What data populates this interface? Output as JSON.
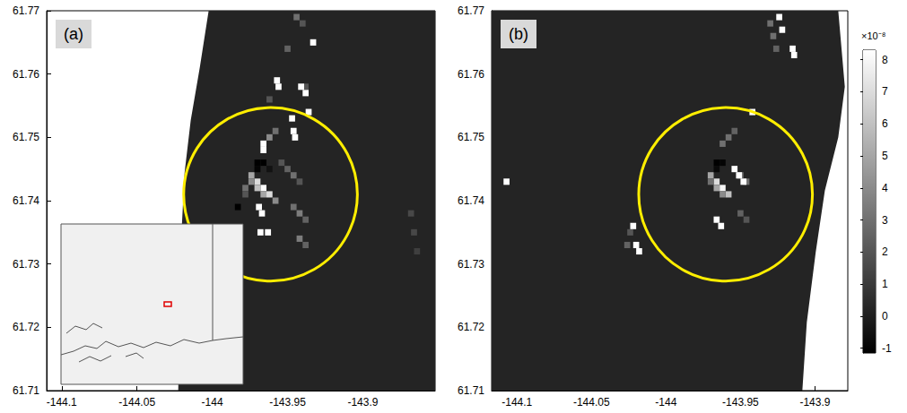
{
  "chart_data": [
    {
      "type": "heatmap",
      "panel": "(a)",
      "xlim": [
        -144.11,
        -143.852
      ],
      "xticks": [
        -144.1,
        -144.05,
        -144,
        -143.95,
        -143.9
      ],
      "ylim": [
        61.71,
        61.77
      ],
      "yticks": [
        61.71,
        61.72,
        61.73,
        61.74,
        61.75,
        61.76,
        61.77
      ],
      "grid": false,
      "background": 2e-09,
      "coverage": [
        [
          -144.0024,
          61.77
        ],
        [
          -144.0083,
          61.761
        ],
        [
          -144.0143,
          61.7527
        ],
        [
          -144.0184,
          61.7444
        ],
        [
          -144.0202,
          61.736
        ],
        [
          -144.0214,
          61.7263
        ],
        [
          -144.0226,
          61.71
        ],
        [
          -143.852,
          61.71
        ],
        [
          -143.852,
          61.77
        ]
      ],
      "cell_size": [
        0.004,
        0.001
      ],
      "cells": [
        [
          -143.974,
          61.744,
          5e-08
        ],
        [
          -143.97,
          61.743,
          7e-08
        ],
        [
          -143.966,
          61.742,
          8.5e-08
        ],
        [
          -143.962,
          61.741,
          7e-08
        ],
        [
          -143.97,
          61.742,
          6e-08
        ],
        [
          -143.966,
          61.741,
          5e-08
        ],
        [
          -143.974,
          61.743,
          4e-08
        ],
        [
          -143.958,
          61.74,
          4e-08
        ],
        [
          -143.978,
          61.742,
          3e-08
        ],
        [
          -143.978,
          61.741,
          2e-08
        ],
        [
          -143.97,
          61.746,
          -1.5e-08
        ],
        [
          -143.966,
          61.746,
          -1.2e-08
        ],
        [
          -143.97,
          61.745,
          -1e-08
        ],
        [
          -143.962,
          61.745,
          -5e-09
        ],
        [
          -143.962,
          61.75,
          4e-08
        ],
        [
          -143.958,
          61.751,
          3e-08
        ],
        [
          -143.954,
          61.746,
          2e-08
        ],
        [
          -143.95,
          61.745,
          2.5e-08
        ],
        [
          -143.946,
          61.744,
          3e-08
        ],
        [
          -143.942,
          61.743,
          2e-08
        ],
        [
          -143.946,
          61.739,
          3e-08
        ],
        [
          -143.942,
          61.738,
          3.5e-08
        ],
        [
          -143.938,
          61.737,
          2.5e-08
        ],
        [
          -143.942,
          61.734,
          3.5e-08
        ],
        [
          -143.938,
          61.733,
          2.5e-08
        ],
        [
          -143.983,
          61.739,
          -1.2e-08
        ],
        [
          -143.944,
          61.769,
          3e-08
        ],
        [
          -143.94,
          61.768,
          2e-08
        ],
        [
          -143.95,
          61.764,
          2.5e-08
        ],
        [
          -143.938,
          61.758,
          2e-08
        ],
        [
          -143.962,
          61.756,
          2e-08
        ],
        [
          -143.866,
          61.735,
          1.5e-08
        ],
        [
          -143.868,
          61.738,
          1.5e-08
        ],
        [
          -143.864,
          61.732,
          1.2e-08
        ],
        [
          -143.933,
          61.765,
          9e-08
        ],
        [
          -143.957,
          61.759,
          9e-08
        ],
        [
          -143.956,
          61.758,
          9e-08
        ],
        [
          -143.941,
          61.758,
          9e-08
        ],
        [
          -143.938,
          61.757,
          9e-08
        ],
        [
          -143.936,
          61.754,
          9e-08
        ],
        [
          -143.946,
          61.751,
          9e-08
        ],
        [
          -143.945,
          61.75,
          9e-08
        ],
        [
          -143.966,
          61.748,
          9e-08
        ],
        [
          -143.966,
          61.749,
          9e-08
        ],
        [
          -143.969,
          61.739,
          9e-08
        ],
        [
          -143.967,
          61.738,
          9e-08
        ],
        [
          -143.968,
          61.735,
          9e-08
        ],
        [
          -143.963,
          61.735,
          9e-08
        ],
        [
          -143.947,
          61.753,
          9e-08
        ]
      ],
      "circle": {
        "center": [
          -143.9613,
          61.741
        ],
        "radius": 0.0137,
        "color": "#ffee00"
      }
    },
    {
      "type": "heatmap",
      "panel": "(b)",
      "xlim": [
        -144.117,
        -143.878
      ],
      "xticks": [
        -144.1,
        -144.05,
        -144,
        -143.95,
        -143.9
      ],
      "ylim": [
        61.71,
        61.77
      ],
      "yticks": [
        61.71,
        61.72,
        61.73,
        61.74,
        61.75,
        61.76,
        61.77
      ],
      "grid": false,
      "background": 2e-09,
      "coverage": [
        [
          -143.8844,
          61.77
        ],
        [
          -143.88,
          61.758
        ],
        [
          -143.8844,
          61.75
        ],
        [
          -143.8934,
          61.7416
        ],
        [
          -143.8995,
          61.7319
        ],
        [
          -143.9055,
          61.7208
        ],
        [
          -143.9085,
          61.71
        ],
        [
          -144.117,
          61.71
        ],
        [
          -144.117,
          61.77
        ]
      ],
      "cell_size": [
        0.004,
        0.001
      ],
      "cells": [
        [
          -143.97,
          61.744,
          5e-08
        ],
        [
          -143.966,
          61.743,
          7e-08
        ],
        [
          -143.962,
          61.742,
          8e-08
        ],
        [
          -143.958,
          61.741,
          6e-08
        ],
        [
          -143.966,
          61.742,
          5e-08
        ],
        [
          -143.97,
          61.743,
          3e-08
        ],
        [
          -143.962,
          61.741,
          4e-08
        ],
        [
          -143.966,
          61.746,
          -1.5e-08
        ],
        [
          -143.962,
          61.746,
          -1e-08
        ],
        [
          -143.966,
          61.745,
          -8e-09
        ],
        [
          -143.962,
          61.749,
          3e-08
        ],
        [
          -143.958,
          61.75,
          3e-08
        ],
        [
          -143.954,
          61.751,
          2.5e-08
        ],
        [
          -143.95,
          61.744,
          3e-08
        ],
        [
          -143.946,
          61.743,
          3e-08
        ],
        [
          -143.95,
          61.738,
          2.5e-08
        ],
        [
          -143.946,
          61.737,
          2e-08
        ],
        [
          -143.93,
          61.768,
          3e-08
        ],
        [
          -143.928,
          61.766,
          3e-08
        ],
        [
          -143.926,
          61.764,
          2.5e-08
        ],
        [
          -144.024,
          61.735,
          2e-08
        ],
        [
          -144.026,
          61.733,
          2.5e-08
        ],
        [
          -144.022,
          61.736,
          9e-08
        ],
        [
          -144.02,
          61.733,
          9e-08
        ],
        [
          -144.018,
          61.732,
          9e-08
        ],
        [
          -144.107,
          61.743,
          9e-08
        ],
        [
          -143.954,
          61.745,
          9e-08
        ],
        [
          -143.951,
          61.744,
          9e-08
        ],
        [
          -143.948,
          61.743,
          9e-08
        ],
        [
          -143.966,
          61.737,
          9e-08
        ],
        [
          -143.963,
          61.736,
          9e-08
        ],
        [
          -143.924,
          61.769,
          9e-08
        ],
        [
          -143.922,
          61.767,
          9e-08
        ],
        [
          -143.915,
          61.764,
          9e-08
        ],
        [
          -143.914,
          61.763,
          9e-08
        ],
        [
          -143.942,
          61.754,
          9e-08
        ]
      ],
      "circle": {
        "center": [
          -143.96,
          61.741
        ],
        "radius": 0.0137,
        "color": "#ffee00"
      },
      "colorbar": {
        "lim": [
          -1.15e-08,
          8.3e-08
        ],
        "ticks": [
          {
            "value": -1e-08,
            "label": "-1"
          },
          0,
          {
            "value": 1e-08,
            "label": "1"
          },
          {
            "value": 2e-08,
            "label": "2"
          },
          {
            "value": 3e-08,
            "label": "3"
          },
          {
            "value": 4e-08,
            "label": "4"
          },
          {
            "value": 5e-08,
            "label": "5"
          },
          {
            "value": 6e-08,
            "label": "6"
          },
          {
            "value": 7e-08,
            "label": "7"
          },
          {
            "value": 8e-08,
            "label": "8"
          }
        ],
        "label": "×10⁻⁸"
      }
    }
  ]
}
